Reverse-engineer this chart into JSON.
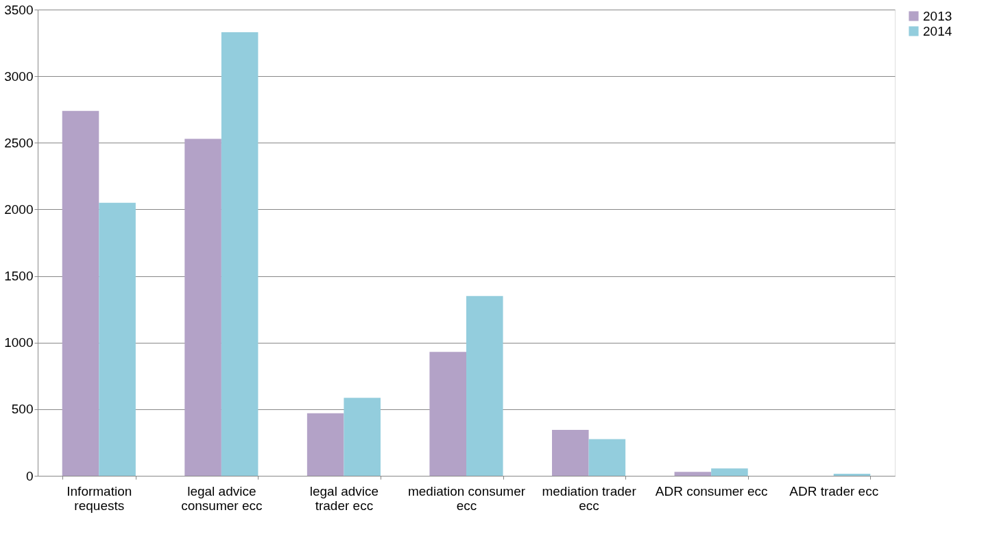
{
  "chart_data": {
    "type": "bar",
    "categories": [
      "Information requests",
      "legal advice consumer ecc",
      "legal advice trader ecc",
      "mediation consumer ecc",
      "mediation trader ecc",
      "ADR consumer ecc",
      "ADR trader ecc"
    ],
    "series": [
      {
        "name": "2013",
        "color": "#b3a2c7",
        "values": [
          2740,
          2530,
          470,
          930,
          345,
          30,
          0
        ]
      },
      {
        "name": "2014",
        "color": "#93cddd",
        "values": [
          2050,
          3330,
          585,
          1350,
          275,
          55,
          15
        ]
      }
    ],
    "ylim": [
      0,
      3500
    ],
    "yticks": [
      0,
      500,
      1000,
      1500,
      2000,
      2500,
      3000,
      3500
    ],
    "grid": "y",
    "legend": "right"
  }
}
